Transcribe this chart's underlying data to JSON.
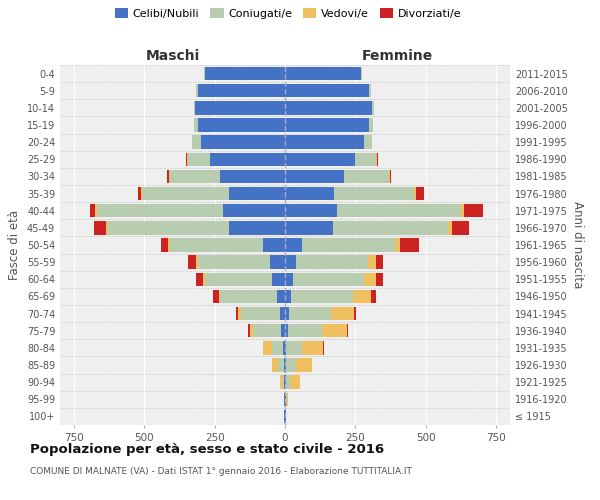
{
  "age_groups": [
    "100+",
    "95-99",
    "90-94",
    "85-89",
    "80-84",
    "75-79",
    "70-74",
    "65-69",
    "60-64",
    "55-59",
    "50-54",
    "45-49",
    "40-44",
    "35-39",
    "30-34",
    "25-29",
    "20-24",
    "15-19",
    "10-14",
    "5-9",
    "0-4"
  ],
  "birth_years": [
    "≤ 1915",
    "1916-1920",
    "1921-1925",
    "1926-1930",
    "1931-1935",
    "1936-1940",
    "1941-1945",
    "1946-1950",
    "1951-1955",
    "1956-1960",
    "1961-1965",
    "1966-1970",
    "1971-1975",
    "1976-1980",
    "1981-1985",
    "1986-1990",
    "1991-1995",
    "1996-2000",
    "2001-2005",
    "2006-2010",
    "2011-2015"
  ],
  "colors": {
    "celibi": "#4472C4",
    "coniugati": "#B8CCB0",
    "vedovi": "#F0C060",
    "divorziati": "#CC2222"
  },
  "maschi": {
    "celibi": [
      2,
      2,
      3,
      5,
      8,
      15,
      18,
      30,
      45,
      55,
      80,
      200,
      220,
      200,
      230,
      265,
      300,
      310,
      320,
      310,
      285
    ],
    "coniugati": [
      0,
      0,
      5,
      20,
      40,
      100,
      140,
      200,
      240,
      255,
      330,
      430,
      450,
      310,
      180,
      80,
      30,
      15,
      5,
      5,
      3
    ],
    "vedovi": [
      0,
      2,
      10,
      20,
      30,
      10,
      8,
      5,
      5,
      5,
      5,
      5,
      5,
      3,
      3,
      3,
      0,
      0,
      0,
      0,
      0
    ],
    "divorziati": [
      0,
      0,
      0,
      0,
      0,
      8,
      8,
      20,
      25,
      30,
      25,
      45,
      20,
      10,
      5,
      3,
      2,
      0,
      0,
      0,
      0
    ]
  },
  "femmine": {
    "celibi": [
      2,
      2,
      3,
      5,
      5,
      10,
      15,
      20,
      30,
      40,
      60,
      170,
      185,
      175,
      210,
      250,
      280,
      300,
      310,
      300,
      270
    ],
    "coniugati": [
      0,
      2,
      15,
      35,
      55,
      120,
      150,
      220,
      250,
      255,
      330,
      410,
      440,
      285,
      160,
      75,
      28,
      12,
      5,
      5,
      3
    ],
    "vedovi": [
      2,
      5,
      35,
      55,
      75,
      90,
      80,
      65,
      45,
      30,
      20,
      15,
      10,
      5,
      3,
      3,
      0,
      0,
      0,
      0,
      0
    ],
    "divorziati": [
      0,
      0,
      0,
      0,
      2,
      5,
      8,
      20,
      22,
      22,
      65,
      60,
      70,
      30,
      5,
      3,
      2,
      0,
      0,
      0,
      0
    ]
  },
  "xlim": 800,
  "title": "Popolazione per età, sesso e stato civile - 2016",
  "subtitle": "COMUNE DI MALNATE (VA) - Dati ISTAT 1° gennaio 2016 - Elaborazione TUTTITALIA.IT",
  "ylabel_left": "Fasce di età",
  "ylabel_right": "Anni di nascita",
  "xlabel_maschi": "Maschi",
  "xlabel_femmine": "Femmine",
  "legend_labels": [
    "Celibi/Nubili",
    "Coniugati/e",
    "Vedovi/e",
    "Divorziati/e"
  ],
  "bg_color": "#FFFFFF",
  "plot_bg": "#EFEFEF"
}
